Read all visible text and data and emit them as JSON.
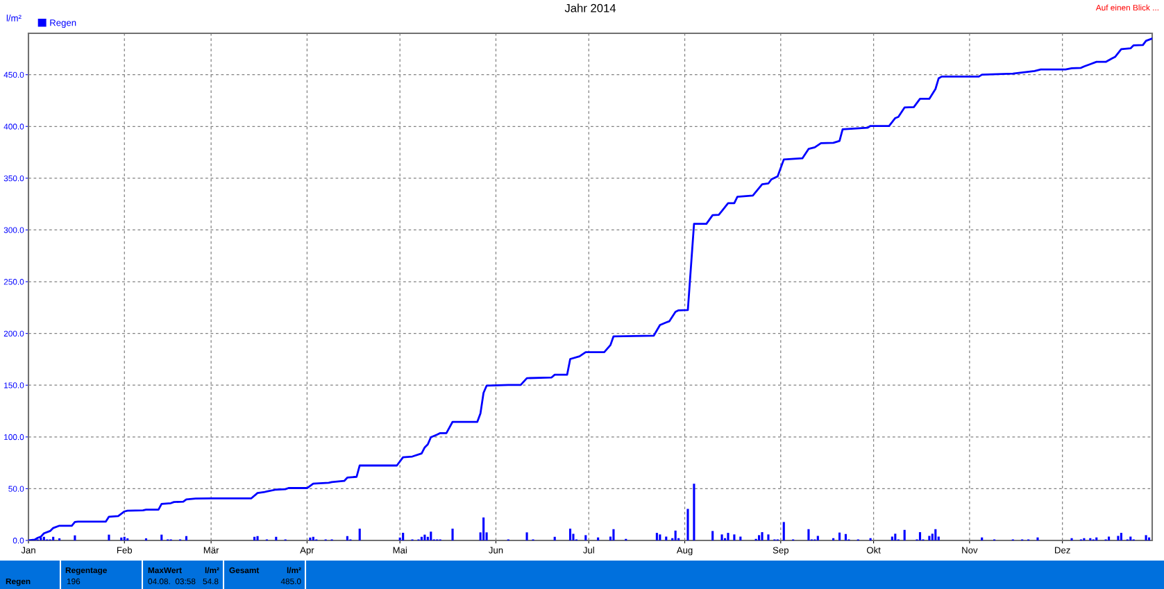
{
  "chart_data": {
    "type": "bar",
    "title": "Jahr 2014",
    "ylabel": "l/m²",
    "legend": "top left",
    "grid": true,
    "marker": "none",
    "xlim": [
      "2014-01-01",
      "2014-12-30"
    ],
    "ylim": [
      0,
      490
    ],
    "xticks": [
      {
        "value": "2014-01-01",
        "label": "Jan"
      },
      {
        "value": "2014-02-01",
        "label": "Feb"
      },
      {
        "value": "2014-03-01",
        "label": "Mär"
      },
      {
        "value": "2014-04-01",
        "label": "Apr"
      },
      {
        "value": "2014-05-01",
        "label": "Mai"
      },
      {
        "value": "2014-06-01",
        "label": "Jun"
      },
      {
        "value": "2014-07-01",
        "label": "Jul"
      },
      {
        "value": "2014-08-01",
        "label": "Aug"
      },
      {
        "value": "2014-09-01",
        "label": "Sep"
      },
      {
        "value": "2014-10-01",
        "label": "Okt"
      },
      {
        "value": "2014-11-01",
        "label": "Nov"
      },
      {
        "value": "2014-12-01",
        "label": "Dez"
      }
    ],
    "yticks": [
      {
        "value": 0,
        "label": "0.0"
      },
      {
        "value": 50,
        "label": "50.0"
      },
      {
        "value": 100,
        "label": "100.0"
      },
      {
        "value": 150,
        "label": "150.0"
      },
      {
        "value": 200,
        "label": "200.0"
      },
      {
        "value": 250,
        "label": "250.0"
      },
      {
        "value": 300,
        "label": "300.0"
      },
      {
        "value": 350,
        "label": "350.0"
      },
      {
        "value": 400,
        "label": "400.0"
      },
      {
        "value": 450,
        "label": "450.0"
      }
    ],
    "series": [
      {
        "color": "#0000ff",
        "x": [
          "2014-01-04",
          "2014-01-05",
          "2014-01-06",
          "2014-01-07",
          "2014-01-08",
          "2014-01-09",
          "2014-01-11",
          "2014-01-16",
          "2014-01-27",
          "2014-01-31",
          "2014-02-01",
          "2014-02-02",
          "2014-02-08",
          "2014-02-13",
          "2014-02-15",
          "2014-02-16",
          "2014-02-19",
          "2014-02-21",
          "2014-03-15",
          "2014-03-16",
          "2014-03-19",
          "2014-03-22",
          "2014-03-25",
          "2014-04-02",
          "2014-04-03",
          "2014-04-04",
          "2014-04-07",
          "2014-04-09",
          "2014-04-14",
          "2014-04-15",
          "2014-04-18",
          "2014-05-01",
          "2014-05-02",
          "2014-05-05",
          "2014-05-07",
          "2014-05-08",
          "2014-05-09",
          "2014-05-10",
          "2014-05-11",
          "2014-05-12",
          "2014-05-13",
          "2014-05-14",
          "2014-05-18",
          "2014-05-27",
          "2014-05-28",
          "2014-05-29",
          "2014-06-05",
          "2014-06-11",
          "2014-06-13",
          "2014-06-20",
          "2014-06-25",
          "2014-06-26",
          "2014-06-27",
          "2014-06-30",
          "2014-07-04",
          "2014-07-08",
          "2014-07-09",
          "2014-07-13",
          "2014-07-23",
          "2014-07-24",
          "2014-07-26",
          "2014-07-28",
          "2014-07-29",
          "2014-07-30",
          "2014-08-02",
          "2014-08-04",
          "2014-08-10",
          "2014-08-13",
          "2014-08-14",
          "2014-08-15",
          "2014-08-17",
          "2014-08-19",
          "2014-08-24",
          "2014-08-25",
          "2014-08-26",
          "2014-08-28",
          "2014-08-30",
          "2014-08-31",
          "2014-09-02",
          "2014-09-05",
          "2014-09-10",
          "2014-09-11",
          "2014-09-12",
          "2014-09-13",
          "2014-09-18",
          "2014-09-20",
          "2014-09-22",
          "2014-09-23",
          "2014-09-26",
          "2014-09-30",
          "2014-10-07",
          "2014-10-08",
          "2014-10-09",
          "2014-10-11",
          "2014-10-15",
          "2014-10-16",
          "2014-10-17",
          "2014-10-19",
          "2014-10-20",
          "2014-10-21",
          "2014-10-22",
          "2014-11-05",
          "2014-11-09",
          "2014-11-15",
          "2014-11-18",
          "2014-11-20",
          "2014-11-23",
          "2014-12-04",
          "2014-12-07",
          "2014-12-08",
          "2014-12-10",
          "2014-12-11",
          "2014-12-12",
          "2014-12-15",
          "2014-12-16",
          "2014-12-19",
          "2014-12-20",
          "2014-12-22",
          "2014-12-23",
          "2014-12-24",
          "2014-12-28",
          "2014-12-29"
        ],
        "values": [
          1,
          2.8,
          3.5,
          1,
          1,
          3.5,
          2,
          4.9,
          5.6,
          2.8,
          3.5,
          2,
          2,
          5.6,
          1,
          1,
          1,
          4.2,
          3.5,
          4.2,
          1,
          3.5,
          1,
          2.8,
          3.5,
          1,
          1,
          1,
          4.2,
          1,
          11.4,
          2.8,
          7.4,
          1,
          1,
          3.5,
          5.6,
          3.5,
          8.5,
          1,
          1,
          1,
          11.4,
          7.8,
          22.2,
          7.8,
          1,
          7.8,
          1,
          3.5,
          11.4,
          6.4,
          1,
          5.1,
          2.9,
          3.7,
          10.9,
          1.5,
          7.3,
          5.8,
          3.7,
          2.2,
          9.5,
          2.2,
          30.5,
          54.8,
          9.1,
          5.8,
          2.2,
          7.3,
          5.8,
          3.7,
          1.5,
          5.1,
          8,
          5.8,
          1,
          1,
          17.8,
          1,
          10.9,
          1,
          1,
          4.4,
          2.2,
          7.6,
          6.2,
          1,
          1,
          2.2,
          3.7,
          6.5,
          1,
          10.2,
          1,
          8,
          1,
          4.4,
          6.5,
          10.9,
          3.7,
          2.9,
          1,
          1,
          1,
          1,
          2.9,
          2.2,
          1,
          2.2,
          2.2,
          1,
          2.9,
          1,
          3.7,
          4.4,
          7.3,
          1,
          3.7,
          1,
          5.1,
          2.9
        ]
      },
      {
        "type": "line",
        "name": "Regen",
        "color": "#0000ff",
        "x": [
          "2014-01-01",
          "2014-01-03",
          "2014-01-04",
          "2014-01-05",
          "2014-01-06",
          "2014-01-08",
          "2014-01-09",
          "2014-01-11",
          "2014-01-15",
          "2014-01-16",
          "2014-01-17",
          "2014-01-26",
          "2014-01-27",
          "2014-01-30",
          "2014-02-01",
          "2014-02-02",
          "2014-02-07",
          "2014-02-08",
          "2014-02-12",
          "2014-02-13",
          "2014-02-16",
          "2014-02-17",
          "2014-02-20",
          "2014-02-21",
          "2014-02-24",
          "2014-03-01",
          "2014-03-14",
          "2014-03-16",
          "2014-03-18",
          "2014-03-19",
          "2014-03-22",
          "2014-03-25",
          "2014-03-26",
          "2014-04-01",
          "2014-04-03",
          "2014-04-08",
          "2014-04-09",
          "2014-04-13",
          "2014-04-14",
          "2014-04-17",
          "2014-04-18",
          "2014-04-30",
          "2014-05-02",
          "2014-05-05",
          "2014-05-08",
          "2014-05-09",
          "2014-05-10",
          "2014-05-11",
          "2014-05-13",
          "2014-05-14",
          "2014-05-16",
          "2014-05-18",
          "2014-05-26",
          "2014-05-27",
          "2014-05-28",
          "2014-05-29",
          "2014-06-05",
          "2014-06-09",
          "2014-06-11",
          "2014-06-19",
          "2014-06-20",
          "2014-06-24",
          "2014-06-25",
          "2014-06-28",
          "2014-06-30",
          "2014-07-06",
          "2014-07-08",
          "2014-07-09",
          "2014-07-22",
          "2014-07-24",
          "2014-07-26",
          "2014-07-27",
          "2014-07-29",
          "2014-07-30",
          "2014-08-02",
          "2014-08-04",
          "2014-08-08",
          "2014-08-10",
          "2014-08-12",
          "2014-08-13",
          "2014-08-15",
          "2014-08-17",
          "2014-08-18",
          "2014-08-23",
          "2014-08-26",
          "2014-08-28",
          "2014-08-29",
          "2014-08-31",
          "2014-09-02",
          "2014-09-08",
          "2014-09-10",
          "2014-09-12",
          "2014-09-14",
          "2014-09-18",
          "2014-09-20",
          "2014-09-21",
          "2014-09-29",
          "2014-09-30",
          "2014-10-06",
          "2014-10-08",
          "2014-10-09",
          "2014-10-11",
          "2014-10-14",
          "2014-10-16",
          "2014-10-19",
          "2014-10-21",
          "2014-10-22",
          "2014-10-23",
          "2014-11-04",
          "2014-11-05",
          "2014-11-15",
          "2014-11-22",
          "2014-11-24",
          "2014-12-02",
          "2014-12-04",
          "2014-12-07",
          "2014-12-08",
          "2014-12-10",
          "2014-12-12",
          "2014-12-15",
          "2014-12-17",
          "2014-12-18",
          "2014-12-20",
          "2014-12-23",
          "2014-12-24",
          "2014-12-27",
          "2014-12-28",
          "2014-12-30"
        ],
        "values": [
          0,
          0.7,
          2.5,
          3.6,
          6.9,
          9.1,
          12,
          14.2,
          14.2,
          17.8,
          18.2,
          18.2,
          22.9,
          23.6,
          28,
          28.7,
          29.1,
          29.8,
          29.8,
          35.3,
          36,
          37.1,
          37.5,
          39.7,
          40.4,
          40.7,
          40.7,
          45.8,
          46.6,
          47.3,
          49.1,
          49.5,
          50.6,
          50.6,
          54.9,
          55.7,
          56.4,
          57.5,
          60.7,
          61.5,
          72.4,
          72.4,
          80.4,
          81.1,
          84,
          89.9,
          92.8,
          99.7,
          102.2,
          103.7,
          103.7,
          114.6,
          114.6,
          122.6,
          142.6,
          149.5,
          150.2,
          150.2,
          156.8,
          157.5,
          160.1,
          160.1,
          175.3,
          177.9,
          181.9,
          181.9,
          188.8,
          197.2,
          197.9,
          208.1,
          210.6,
          211.7,
          220.8,
          222.3,
          222.6,
          305.9,
          305.9,
          314.3,
          314.7,
          318.3,
          325.9,
          325.9,
          332.1,
          333.2,
          344.1,
          344.9,
          348.9,
          351.8,
          368.1,
          369.2,
          378.3,
          379.8,
          383.8,
          384.2,
          386,
          397.3,
          398.7,
          400.5,
          400.5,
          408.1,
          409.2,
          418.3,
          418.7,
          426.7,
          426.7,
          436.2,
          446.4,
          448.2,
          448.2,
          450,
          451.1,
          453.6,
          455.1,
          455.1,
          456.2,
          456.6,
          458,
          460.2,
          462.4,
          462.4,
          465.7,
          467.2,
          474.7,
          475.5,
          478.4,
          478.7,
          482.7,
          485.0
        ]
      }
    ],
    "annotations": [
      "Auf einen Blick ...",
      "Regen",
      "Regentage",
      "196",
      "MaxWert",
      "l/m²",
      "04.08.  03:58",
      "54.8",
      "Gesamt",
      "l/m²",
      "485.0"
    ]
  }
}
